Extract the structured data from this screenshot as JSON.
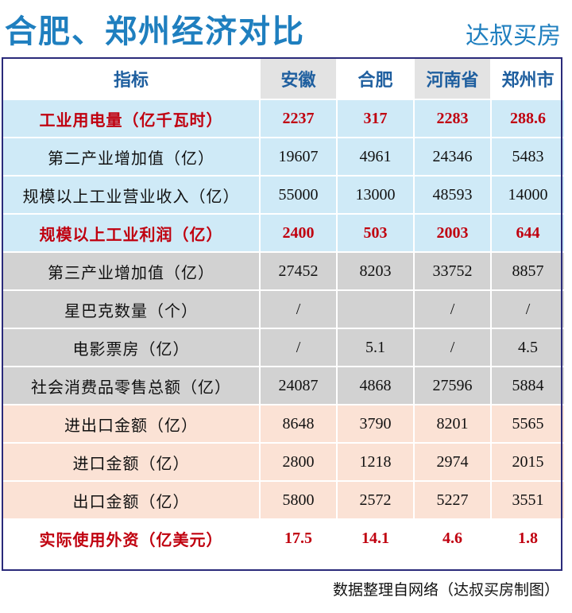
{
  "header": {
    "title": "合肥、郑州经济对比",
    "brand": "达叔买房"
  },
  "chart_data": {
    "type": "table",
    "title": "合肥、郑州经济对比",
    "columns": [
      "指标",
      "安徽",
      "合肥",
      "河南省",
      "郑州市"
    ],
    "rows": [
      {
        "label": "工业用电量（亿千瓦时）",
        "values": [
          "2237",
          "317",
          "2283",
          "288.6"
        ]
      },
      {
        "label": "第二产业增加值（亿）",
        "values": [
          "19607",
          "4961",
          "24346",
          "5483"
        ]
      },
      {
        "label": "规模以上工业营业收入（亿）",
        "values": [
          "55000",
          "13000",
          "48593",
          "14000"
        ]
      },
      {
        "label": "规模以上工业利润（亿）",
        "values": [
          "2400",
          "503",
          "2003",
          "644"
        ]
      },
      {
        "label": "第三产业增加值（亿）",
        "values": [
          "27452",
          "8203",
          "33752",
          "8857"
        ]
      },
      {
        "label": "星巴克数量（个）",
        "values": [
          "/",
          "",
          "/",
          "/"
        ]
      },
      {
        "label": "电影票房（亿）",
        "values": [
          "/",
          "5.1",
          "/",
          "4.5"
        ]
      },
      {
        "label": "社会消费品零售总额（亿）",
        "values": [
          "24087",
          "4868",
          "27596",
          "5884"
        ]
      },
      {
        "label": "进出口金额（亿）",
        "values": [
          "8648",
          "3790",
          "8201",
          "5565"
        ]
      },
      {
        "label": "进口金额（亿）",
        "values": [
          "2800",
          "1218",
          "2974",
          "2015"
        ]
      },
      {
        "label": "出口金额（亿）",
        "values": [
          "5800",
          "2572",
          "5227",
          "3551"
        ]
      },
      {
        "label": "实际使用外资（亿美元）",
        "values": [
          "17.5",
          "14.1",
          "4.6",
          "1.8"
        ]
      }
    ],
    "highlighted_rows": [
      0,
      3,
      11
    ],
    "colors": {
      "title": "#1f7fbf",
      "header_text": "#1f5f9f",
      "highlight_text": "#c0000f",
      "industry_band": "#cfeaf7",
      "services_band": "#d2d2d2",
      "trade_band": "#fbe2d5",
      "header_grey": "#e3e3e3"
    }
  },
  "footer": {
    "source": "数据整理自网络（达叔买房制图）"
  }
}
